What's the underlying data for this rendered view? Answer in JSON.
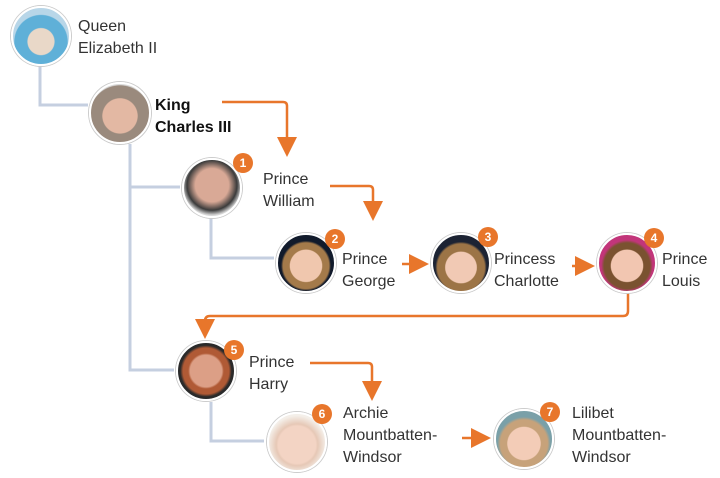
{
  "colors": {
    "arrow": "#e8762b",
    "connector": "#c5cfe0",
    "badge": "#e8762b"
  },
  "people": [
    {
      "id": "queen",
      "lines": [
        "Queen",
        "Elizabeth II"
      ],
      "order": null
    },
    {
      "id": "charles",
      "lines": [
        "King",
        "Charles III"
      ],
      "order": null
    },
    {
      "id": "william",
      "lines": [
        "Prince",
        "William"
      ],
      "order": "1"
    },
    {
      "id": "george",
      "lines": [
        "Prince",
        "George"
      ],
      "order": "2"
    },
    {
      "id": "charlotte",
      "lines": [
        "Princess",
        "Charlotte"
      ],
      "order": "3"
    },
    {
      "id": "louis",
      "lines": [
        "Prince",
        "Louis"
      ],
      "order": "4"
    },
    {
      "id": "harry",
      "lines": [
        "Prince",
        "Harry"
      ],
      "order": "5"
    },
    {
      "id": "archie",
      "lines": [
        "Archie",
        "Mountbatten-",
        "Windsor"
      ],
      "order": "6"
    },
    {
      "id": "lilibet",
      "lines": [
        "Lilibet",
        "Mountbatten-",
        "Windsor"
      ],
      "order": "7"
    }
  ]
}
